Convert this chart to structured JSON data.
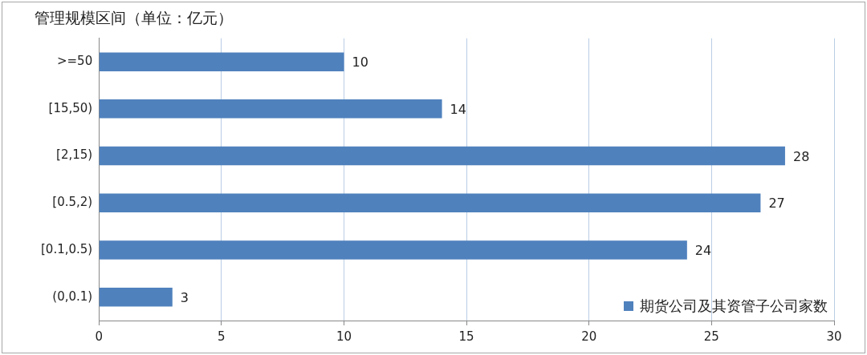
{
  "chart_data": {
    "type": "bar",
    "orientation": "horizontal",
    "title": "管理规模区间（单位：亿元）",
    "categories": [
      ">=50",
      "[15,50)",
      "[2,15)",
      "[0.5,2)",
      "[0.1,0.5)",
      "(0,0.1)"
    ],
    "series": [
      {
        "name": "期货公司及其资管子公司家数",
        "color": "#4f81bd",
        "values": [
          10,
          14,
          28,
          27,
          24,
          3
        ]
      }
    ],
    "xlim": [
      0,
      30
    ],
    "xticks": [
      0,
      5,
      10,
      15,
      20,
      25,
      30
    ],
    "grid": "x",
    "legend": "bottom right",
    "data_labels": true
  }
}
